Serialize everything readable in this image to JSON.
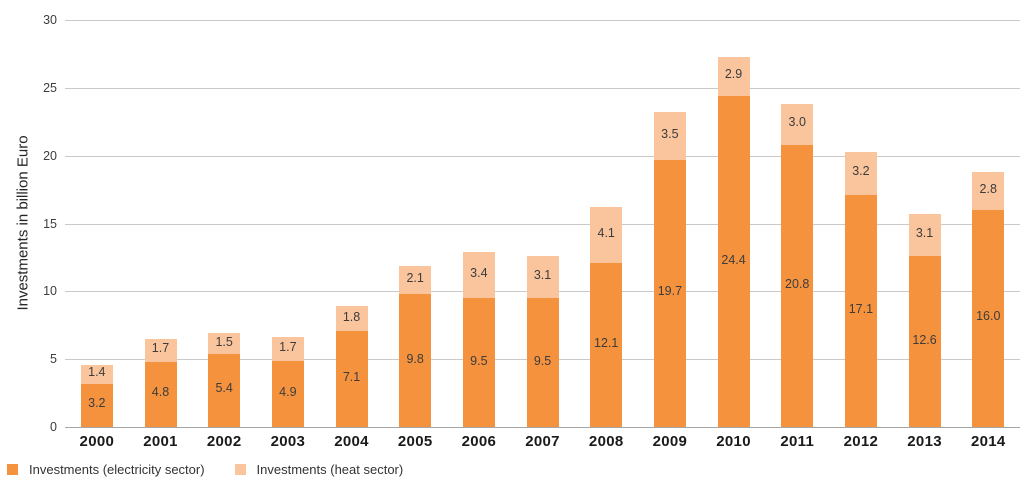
{
  "chart_data": {
    "type": "bar",
    "stacked": true,
    "title": "",
    "xlabel": "",
    "ylabel": "Investments in billion Euro",
    "ylim": [
      0,
      30
    ],
    "yticks": [
      0,
      5,
      10,
      15,
      20,
      25,
      30
    ],
    "grid": true,
    "legend_position": "bottom-left",
    "value_label_decimals": 1,
    "categories": [
      "2000",
      "2001",
      "2002",
      "2003",
      "2004",
      "2005",
      "2006",
      "2007",
      "2008",
      "2009",
      "2010",
      "2011",
      "2012",
      "2013",
      "2014"
    ],
    "series": [
      {
        "name": "Investments (electricity sector)",
        "key": "electricity",
        "color": "#F5923E",
        "values": [
          3.2,
          4.8,
          5.4,
          4.9,
          7.1,
          9.8,
          9.5,
          9.5,
          12.1,
          19.7,
          24.4,
          20.8,
          17.1,
          12.6,
          16.0
        ]
      },
      {
        "name": "Investments (heat sector)",
        "key": "heat",
        "color": "#FAC59D",
        "values": [
          1.4,
          1.7,
          1.5,
          1.7,
          1.8,
          2.1,
          3.4,
          3.1,
          4.1,
          3.5,
          2.9,
          3.0,
          3.2,
          3.1,
          2.8
        ]
      }
    ],
    "colors": {
      "gridline": "#c9c9c9",
      "axis_line": "#a6a6a6",
      "tick_label": "#3d3d3d",
      "value_label": "#3c3c3c",
      "category_label": "#1a1a1a"
    }
  }
}
